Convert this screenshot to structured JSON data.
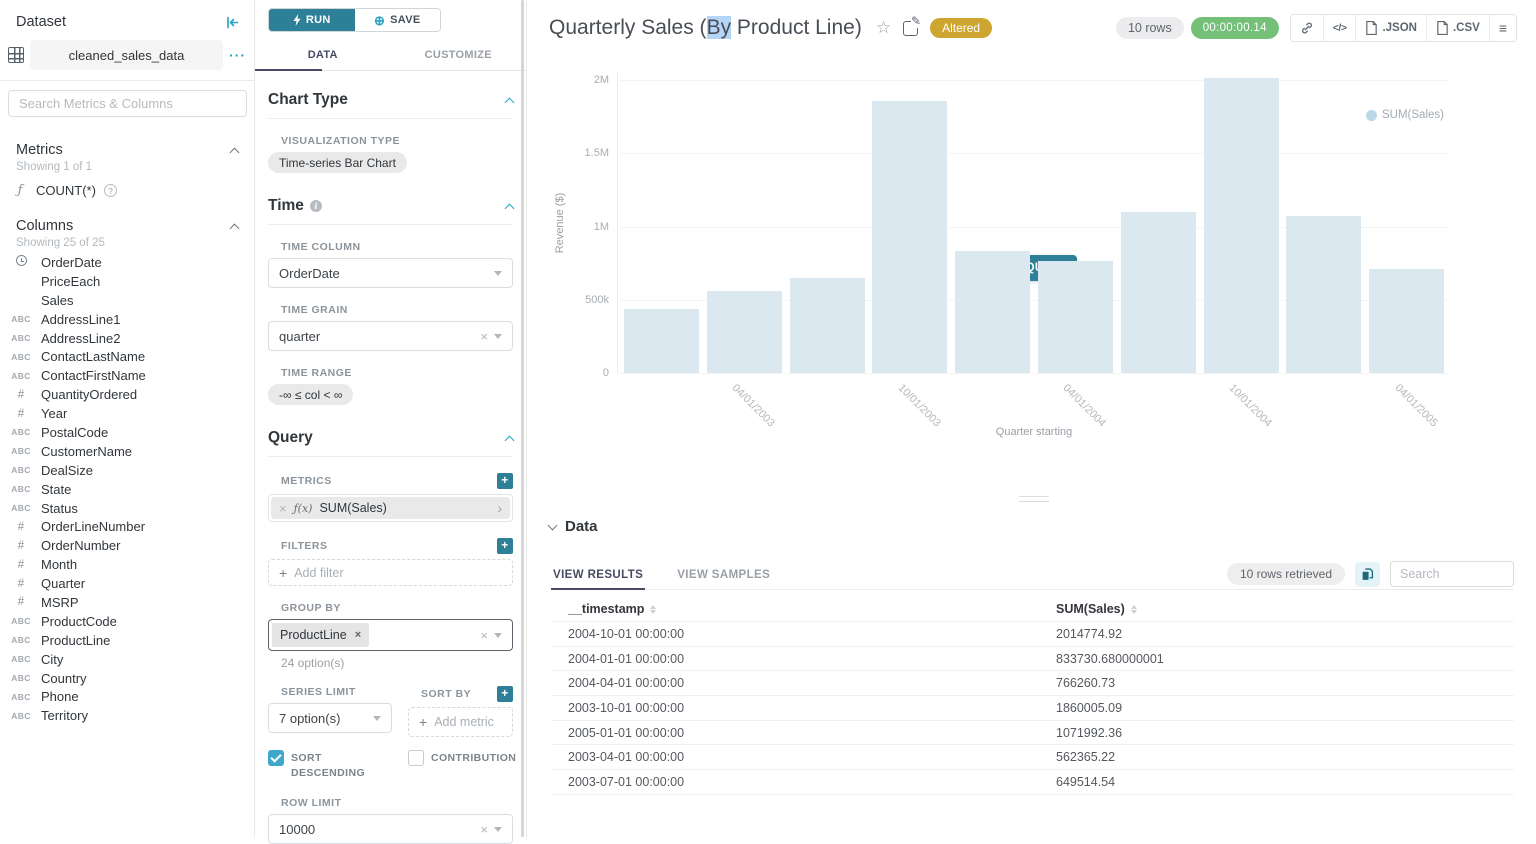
{
  "dataset_panel": {
    "title": "Dataset",
    "name": "cleaned_sales_data",
    "search_placeholder": "Search Metrics & Columns",
    "metrics": {
      "header": "Metrics",
      "showing": "Showing 1 of 1",
      "items": [
        {
          "label": "COUNT(*)"
        }
      ]
    },
    "columns": {
      "header": "Columns",
      "showing": "Showing 25 of 25",
      "items": [
        {
          "type": "time",
          "label": "OrderDate"
        },
        {
          "type": "none",
          "label": "PriceEach"
        },
        {
          "type": "none",
          "label": "Sales"
        },
        {
          "type": "str",
          "label": "AddressLine1"
        },
        {
          "type": "str",
          "label": "AddressLine2"
        },
        {
          "type": "str",
          "label": "ContactLastName"
        },
        {
          "type": "str",
          "label": "ContactFirstName"
        },
        {
          "type": "num",
          "label": "QuantityOrdered"
        },
        {
          "type": "num",
          "label": "Year"
        },
        {
          "type": "str",
          "label": "PostalCode"
        },
        {
          "type": "str",
          "label": "CustomerName"
        },
        {
          "type": "str",
          "label": "DealSize"
        },
        {
          "type": "str",
          "label": "State"
        },
        {
          "type": "str",
          "label": "Status"
        },
        {
          "type": "num",
          "label": "OrderLineNumber"
        },
        {
          "type": "num",
          "label": "OrderNumber"
        },
        {
          "type": "num",
          "label": "Month"
        },
        {
          "type": "num",
          "label": "Quarter"
        },
        {
          "type": "num",
          "label": "MSRP"
        },
        {
          "type": "str",
          "label": "ProductCode"
        },
        {
          "type": "str",
          "label": "ProductLine"
        },
        {
          "type": "str",
          "label": "City"
        },
        {
          "type": "str",
          "label": "Country"
        },
        {
          "type": "str",
          "label": "Phone"
        },
        {
          "type": "str",
          "label": "Territory"
        }
      ]
    }
  },
  "control_panel": {
    "run_label": "RUN",
    "save_label": "SAVE",
    "tabs": {
      "data": "DATA",
      "customize": "CUSTOMIZE"
    },
    "chart_type": {
      "header": "Chart Type",
      "viz_label": "VISUALIZATION TYPE",
      "viz_value": "Time-series Bar Chart"
    },
    "time": {
      "header": "Time",
      "time_column_label": "TIME COLUMN",
      "time_column_value": "OrderDate",
      "time_grain_label": "TIME GRAIN",
      "time_grain_value": "quarter",
      "time_range_label": "TIME RANGE",
      "time_range_value": "-∞ ≤ col < ∞"
    },
    "query": {
      "header": "Query",
      "metrics_label": "METRICS",
      "metric_fx": "ƒ(x)",
      "metric_chip": "SUM(Sales)",
      "filters_label": "FILTERS",
      "add_filter": "Add filter",
      "group_by_label": "GROUP BY",
      "group_by_chip": "ProductLine",
      "group_by_hint": "24 option(s)",
      "series_limit_label": "SERIES LIMIT",
      "series_limit_value": "7 option(s)",
      "sort_by_label": "SORT BY",
      "add_metric": "Add metric",
      "sort_descending_label": "SORT DESCENDING",
      "contribution_label": "CONTRIBUTION",
      "row_limit_label": "ROW LIMIT",
      "row_limit_value": "10000"
    }
  },
  "header": {
    "title_pre": "Quarterly Sales (",
    "title_selected": "By",
    "title_post": " Product Line)",
    "altered_badge": "Altered",
    "rows_badge": "10 rows",
    "timer_badge": "00:00:00.14",
    "export_json_label": ".JSON",
    "export_csv_label": ".CSV"
  },
  "chart": {
    "run_query_label": "RUN QUERY"
  },
  "chart_data": {
    "type": "bar",
    "title": "Quarterly Sales (By Product Line)",
    "xlabel": "Quarter starting",
    "ylabel": "Revenue ($)",
    "legend": [
      "SUM(Sales)"
    ],
    "legend_position": "top-right",
    "grid": true,
    "x": [
      "2003-01-01",
      "2003-04-01",
      "2003-07-01",
      "2003-10-01",
      "2004-01-01",
      "2004-04-01",
      "2004-07-01",
      "2004-10-01",
      "2005-01-01",
      "2005-04-01"
    ],
    "series": [
      {
        "name": "SUM(Sales)",
        "values": [
          437000,
          562365.22,
          649514.54,
          1860005.09,
          833730.68,
          766260.73,
          1099000,
          2014774.92,
          1071992.36,
          710000
        ]
      }
    ],
    "ylim": [
      0,
      2050000
    ],
    "yticks": [
      {
        "v": 0,
        "label": "0"
      },
      {
        "v": 500000,
        "label": "500k"
      },
      {
        "v": 1000000,
        "label": "1M"
      },
      {
        "v": 1500000,
        "label": "1.5M"
      },
      {
        "v": 2000000,
        "label": "2M"
      }
    ],
    "xticks": [
      {
        "index": 1,
        "label": "04/01/2003"
      },
      {
        "index": 3,
        "label": "10/01/2003"
      },
      {
        "index": 5,
        "label": "04/01/2004"
      },
      {
        "index": 7,
        "label": "10/01/2004"
      },
      {
        "index": 9,
        "label": "04/01/2005"
      }
    ],
    "bar_color": "#dce8ef"
  },
  "data_panel": {
    "header": "Data",
    "tab_results": "VIEW RESULTS",
    "tab_samples": "VIEW SAMPLES",
    "rows_retrieved": "10 rows retrieved",
    "search_placeholder": "Search",
    "table": {
      "columns": [
        "__timestamp",
        "SUM(Sales)"
      ],
      "rows": [
        [
          "2004-10-01 00:00:00",
          "2014774.92"
        ],
        [
          "2004-01-01 00:00:00",
          "833730.680000001"
        ],
        [
          "2004-04-01 00:00:00",
          "766260.73"
        ],
        [
          "2003-10-01 00:00:00",
          "1860005.09"
        ],
        [
          "2005-01-01 00:00:00",
          "1071992.36"
        ],
        [
          "2003-04-01 00:00:00",
          "562365.22"
        ],
        [
          "2003-07-01 00:00:00",
          "649514.54"
        ]
      ]
    }
  },
  "colors": {
    "primary_teal": "#2e7f98",
    "accent_teal": "#24a2c2",
    "checkbox_teal": "#3fa7c7",
    "altered_gold": "#cda530",
    "timer_green": "#74c078",
    "bar_fill": "#dce8ef",
    "tab_indigo": "#474a62"
  }
}
